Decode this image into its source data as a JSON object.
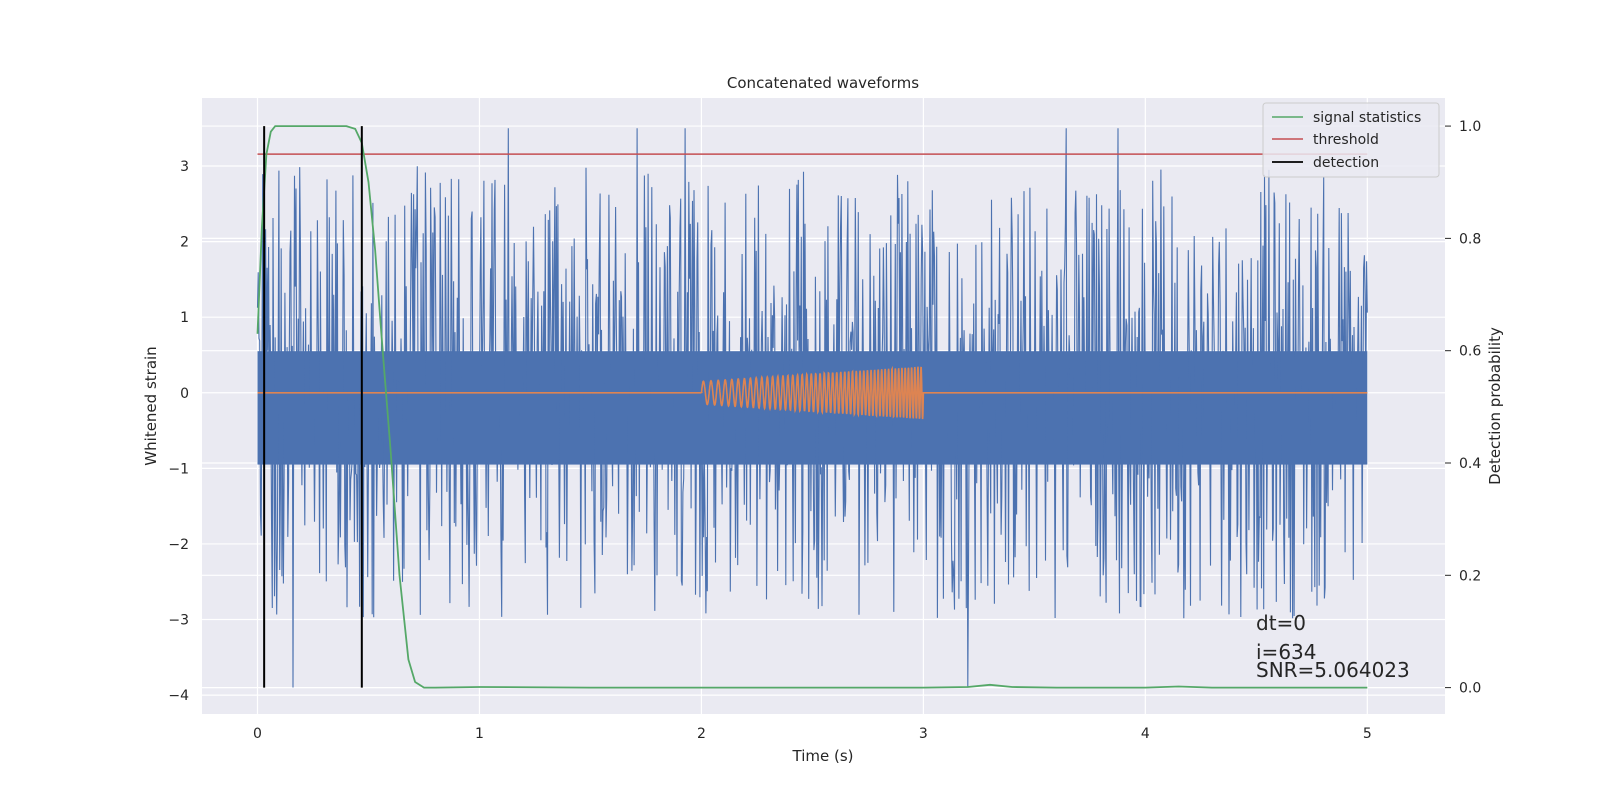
{
  "chart_data": {
    "type": "line",
    "title": "Concatenated waveforms",
    "xlabel": "Time (s)",
    "ylabel": "Whitened strain",
    "ylabel_right": "Detection probability",
    "xlim": [
      -0.25,
      5.35
    ],
    "ylim": [
      -4.25,
      3.9
    ],
    "ylim_right": [
      -0.047,
      1.05
    ],
    "x_ticks": [
      0,
      1,
      2,
      3,
      4,
      5
    ],
    "x_tick_labels": [
      "0",
      "1",
      "2",
      "3",
      "4",
      "5"
    ],
    "y_ticks": [
      -4,
      -3,
      -2,
      -1,
      0,
      1,
      2,
      3
    ],
    "y_tick_labels": [
      "−4",
      "−3",
      "−2",
      "−1",
      "0",
      "1",
      "2",
      "3"
    ],
    "y_right_ticks": [
      0.0,
      0.2,
      0.4,
      0.6,
      0.8,
      1.0
    ],
    "y_right_tick_labels": [
      "0.0",
      "0.2",
      "0.4",
      "0.6",
      "0.8",
      "1.0"
    ],
    "grid": true,
    "legend": {
      "placement": "top-right",
      "entries": [
        {
          "label": "signal statistics",
          "color": "#55a868"
        },
        {
          "label": "threshold",
          "color": "#c44e52"
        },
        {
          "label": "detection",
          "color": "#000000"
        }
      ]
    },
    "colors": {
      "strain": "#4c72b0",
      "template": "#dd8452",
      "signal_statistics": "#55a868",
      "threshold": "#c44e52",
      "detection": "#000000",
      "background": "#eaeaf2"
    },
    "strain_noise": {
      "t_start": 0,
      "t_end": 5,
      "band_low": -0.95,
      "band_high": 0.55,
      "peak_high": 3.5,
      "peak_low": -3.9
    },
    "template_chirp": {
      "t_start": 2.0,
      "t_end": 3.0,
      "amplitude_start": 0.15,
      "amplitude_end": 0.35
    },
    "signal_statistics": {
      "t": [
        0.0,
        0.02,
        0.04,
        0.06,
        0.08,
        0.1,
        0.2,
        0.3,
        0.4,
        0.44,
        0.47,
        0.5,
        0.53,
        0.56,
        0.6,
        0.64,
        0.68,
        0.71,
        0.75,
        0.8,
        1.0,
        1.5,
        2.0,
        2.5,
        3.0,
        3.2,
        3.3,
        3.4,
        3.6,
        4.0,
        4.15,
        4.3,
        5.0
      ],
      "values": [
        0.63,
        0.82,
        0.95,
        0.99,
        1.0,
        1.0,
        1.0,
        1.0,
        1.0,
        0.995,
        0.97,
        0.9,
        0.78,
        0.62,
        0.42,
        0.2,
        0.05,
        0.01,
        0.0,
        0.0,
        0.001,
        0.0,
        0.0,
        0.0,
        0.0,
        0.001,
        0.005,
        0.001,
        0.0,
        0.0,
        0.002,
        0.0,
        0.0
      ]
    },
    "threshold": 0.95,
    "threshold_x": [
      0,
      5.0
    ],
    "detections": [
      0.03,
      0.47
    ],
    "annotations": [
      "dt=0",
      "i=634",
      "SNR=5.064023"
    ]
  }
}
